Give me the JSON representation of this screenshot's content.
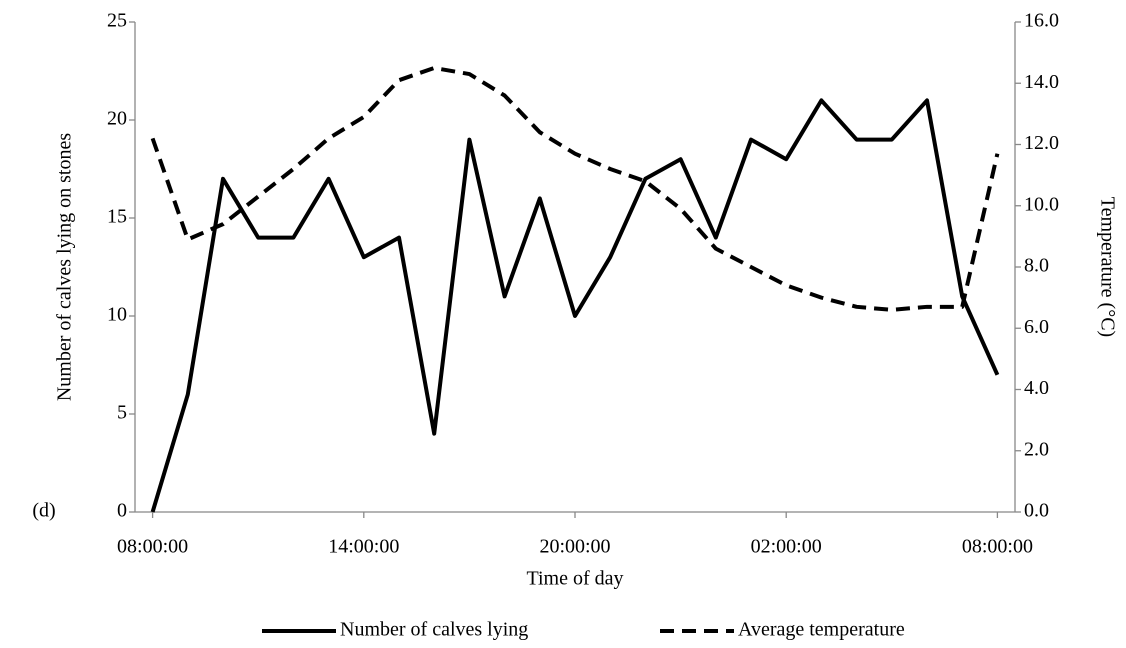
{
  "chart_data": {
    "type": "line",
    "y_label": "Number of calves lying on stones",
    "y2_label": "Temperature (°C)",
    "x_label": "Time of day",
    "annotation": "(d)",
    "categories": [
      "08:00:00",
      null,
      null,
      null,
      null,
      null,
      "14:00:00",
      null,
      null,
      null,
      null,
      null,
      "20:00:00",
      null,
      null,
      null,
      null,
      null,
      "02:00:00",
      null,
      null,
      null,
      null,
      null,
      "08:00:00"
    ],
    "series": [
      {
        "name": "Number of calves lying",
        "color": "#000000",
        "line_style": "solid",
        "axis": "y",
        "values": [
          0,
          6,
          17,
          14,
          14,
          17,
          13,
          14,
          4,
          19,
          11,
          16,
          10,
          13,
          17,
          18,
          14,
          19,
          18,
          21,
          19,
          19,
          21,
          11,
          7
        ]
      },
      {
        "name": "Average temperature",
        "color": "#000000",
        "line_style": "dashed",
        "axis": "y2",
        "values": [
          12.2,
          8.9,
          9.4,
          10.3,
          11.2,
          12.2,
          12.9,
          14.1,
          14.5,
          14.3,
          13.6,
          12.4,
          11.7,
          11.2,
          10.8,
          9.9,
          8.6,
          8.0,
          7.4,
          7.0,
          6.7,
          6.6,
          6.7,
          6.7,
          11.7
        ]
      }
    ],
    "ylim": [
      0,
      25
    ],
    "yticks": [
      0,
      5,
      10,
      15,
      20,
      25
    ],
    "y2lim": [
      0,
      16
    ],
    "y2ticks": [
      {
        "value": 0,
        "label": "0.0"
      },
      {
        "value": 2,
        "label": "2.0"
      },
      {
        "value": 4,
        "label": "4.0"
      },
      {
        "value": 6,
        "label": "6.0"
      },
      {
        "value": 8,
        "label": "8.0"
      },
      {
        "value": 10,
        "label": "10.0"
      },
      {
        "value": 12,
        "label": "12.0"
      },
      {
        "value": 14,
        "label": "14.0"
      },
      {
        "value": 16,
        "label": "16.0"
      }
    ],
    "grid": false,
    "legend": "bottom"
  }
}
